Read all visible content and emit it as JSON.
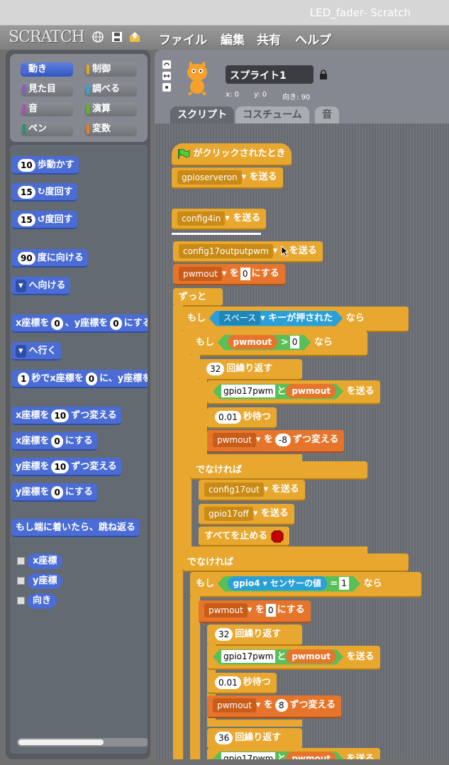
{
  "window": {
    "title": "LED_fader- Scratch"
  },
  "menu": {
    "logo": "SCRATCH",
    "items": [
      "ファイル",
      "編集",
      "共有",
      "ヘルプ"
    ]
  },
  "categories": [
    {
      "label": "動き",
      "color": "#4a6cd4",
      "selected": true
    },
    {
      "label": "制御",
      "color": "#e1a91a"
    },
    {
      "label": "見た目",
      "color": "#8a55d7"
    },
    {
      "label": "調べる",
      "color": "#2ca5e2"
    },
    {
      "label": "音",
      "color": "#bb42c3"
    },
    {
      "label": "演算",
      "color": "#5cb712"
    },
    {
      "label": "ペン",
      "color": "#0e9a6c"
    },
    {
      "label": "変数",
      "color": "#ee7d16"
    }
  ],
  "palette": {
    "move": {
      "n": "10",
      "label": "歩動かす"
    },
    "turn_cw": {
      "n": "15",
      "label": "度回す"
    },
    "turn_ccw": {
      "n": "15",
      "label": "度回す"
    },
    "point_dir": {
      "n": "90",
      "label": "度に向ける"
    },
    "point_towards": {
      "label": "へ向ける"
    },
    "goto_xy": {
      "a": "x座標を",
      "x": "0",
      "b": "、y座標を",
      "y": "0",
      "c": "にする"
    },
    "goto": {
      "label": "へ行く"
    },
    "glide": {
      "n": "1",
      "a": "秒でx座標を",
      "x": "0",
      "b": "に、y座標を"
    },
    "change_x": {
      "a": "x座標を",
      "n": "10",
      "b": "ずつ変える"
    },
    "set_x": {
      "a": "x座標を",
      "n": "0",
      "b": "にする"
    },
    "change_y": {
      "a": "y座標を",
      "n": "10",
      "b": "ずつ変える"
    },
    "set_y": {
      "a": "y座標を",
      "n": "0",
      "b": "にする"
    },
    "bounce": {
      "label": "もし端に着いたら、跳ね返る"
    },
    "reporters": [
      "x座標",
      "y座標",
      "向き"
    ]
  },
  "sprite": {
    "name": "スプライト1",
    "x_label": "x: 0",
    "y_label": "y: 0",
    "dir_label": "向き: 90"
  },
  "tabs": [
    "スクリプト",
    "コスチューム",
    "音"
  ],
  "script": {
    "hat": "がクリックされたとき",
    "send": "を送る",
    "set_to": "を",
    "set_end": "にする",
    "change_by": "ずつ変える",
    "forever": "ずっと",
    "if": "もし",
    "then": "なら",
    "else": "でなければ",
    "repeat": "回繰り返す",
    "wait": "秒待つ",
    "and": "と",
    "stop_all": "すべてを止める",
    "key_pressed": "キーが押された",
    "sensor_value": "センサーの値",
    "msg1": "gpioserveron",
    "msg2": "config4in",
    "msg3": "config17outputpwm",
    "var": "pwmout",
    "zero": "0",
    "key": "スペース",
    "gt": ">",
    "rep": "32",
    "join_txt": "gpio17pwm",
    "wait_n": "0.01",
    "dec": "-8",
    "inc": "8",
    "msg_out": "config17out",
    "msg_off": "gpio17off",
    "sensor": "gpio4",
    "eq": "=",
    "one": "1",
    "rep2": "36"
  }
}
